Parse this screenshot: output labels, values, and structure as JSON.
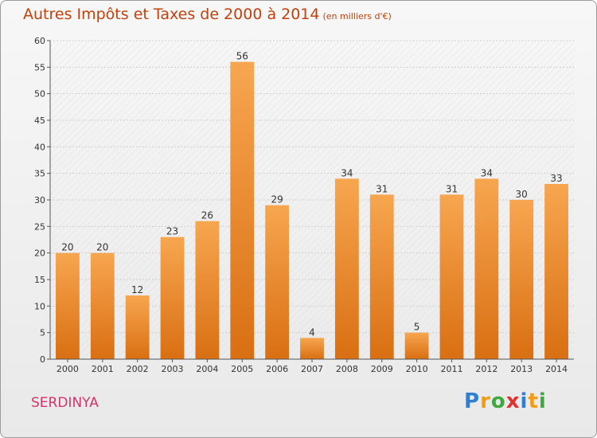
{
  "header": {
    "title": "Autres Impôts et Taxes de 2000 à 2014",
    "subtitle": "(en milliers d'€)"
  },
  "footer": {
    "location": "SERDINYA",
    "brand_letters": [
      "P",
      "r",
      "o",
      "x",
      "i",
      "t",
      "i"
    ],
    "brand_colors": [
      "#2f7fd0",
      "#f39c12",
      "#3fa83f",
      "#e03131",
      "#2f7fd0",
      "#f39c12",
      "#3fa83f"
    ]
  },
  "chart_data": {
    "type": "bar",
    "title": "Autres Impôts et Taxes de 2000 à 2014",
    "subtitle": "(en milliers d'€)",
    "categories": [
      "2000",
      "2001",
      "2002",
      "2003",
      "2004",
      "2005",
      "2006",
      "2007",
      "2008",
      "2009",
      "2010",
      "2011",
      "2012",
      "2013",
      "2014"
    ],
    "values": [
      20,
      20,
      12,
      23,
      26,
      56,
      29,
      4,
      34,
      31,
      5,
      31,
      34,
      30,
      33
    ],
    "ylim": [
      0,
      60
    ],
    "yticks": [
      0,
      5,
      10,
      15,
      20,
      25,
      30,
      35,
      40,
      45,
      50,
      55,
      60
    ],
    "grid": true,
    "bar_color": "#f0922e",
    "xlabel": "",
    "ylabel": ""
  }
}
